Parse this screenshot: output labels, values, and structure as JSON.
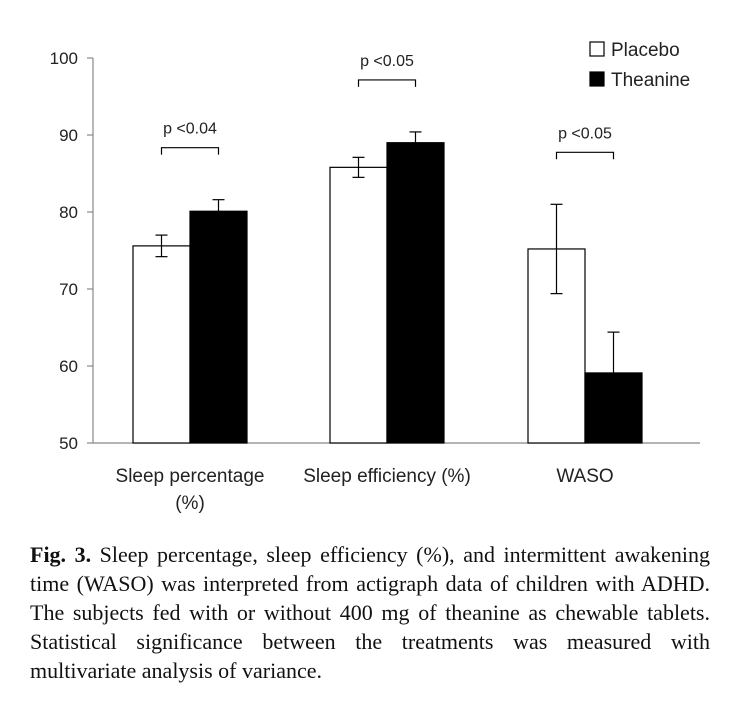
{
  "chart_data": {
    "type": "bar",
    "categories": [
      [
        "Sleep percentage",
        "(%)"
      ],
      [
        "Sleep efficiency (%)"
      ],
      [
        "WASO"
      ]
    ],
    "series": [
      {
        "name": "Placebo",
        "fill": "#ffffff",
        "values": [
          75.6,
          85.8,
          75.2
        ],
        "errors": [
          1.4,
          1.3,
          5.8
        ]
      },
      {
        "name": "Theanine",
        "fill": "#000000",
        "values": [
          80.1,
          89.0,
          59.1
        ],
        "errors": [
          1.5,
          1.4,
          5.3
        ]
      }
    ],
    "ylim": [
      50,
      100
    ],
    "yticks": [
      50,
      60,
      70,
      80,
      90,
      100
    ],
    "significance": [
      "p <0.04",
      "p <0.05",
      "p <0.05"
    ],
    "legend_position": "top-right",
    "xlabel": "",
    "ylabel": ""
  },
  "caption": {
    "label": "Fig. 3.",
    "text": " Sleep percentage, sleep efficiency (%), and intermittent awakening time (WASO) was interpreted from actigraph data of children with ADHD. The subjects fed with or without 400 mg of theanine as chewable tablets. Statistical significance between the treatments was measured with multivariate analysis of variance."
  }
}
